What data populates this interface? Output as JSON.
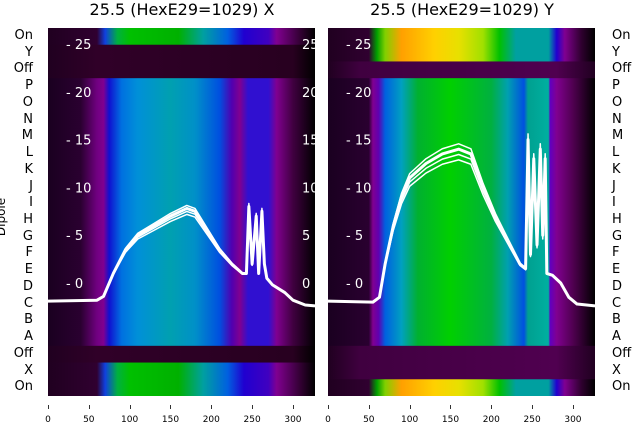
{
  "ylabel": "Dipole",
  "row_labels": [
    "On",
    "Y",
    "Off",
    "P",
    "O",
    "N",
    "M",
    "L",
    "K",
    "J",
    "I",
    "H",
    "G",
    "F",
    "E",
    "D",
    "C",
    "B",
    "A",
    "Off",
    "X",
    "On"
  ],
  "chart_data": [
    {
      "type": "heatmap",
      "title": "25.5 (HexE29=1029) X",
      "xlim": [
        0,
        327
      ],
      "ylim": [
        -8.9,
        29.5
      ],
      "xticks": [
        0,
        50,
        100,
        150,
        200,
        250,
        300
      ],
      "yticks": [
        0,
        5,
        10,
        15,
        20,
        25
      ],
      "row_kinds": [
        "bright",
        "dark",
        "dark",
        "main",
        "main",
        "main",
        "main",
        "main",
        "main",
        "main",
        "main",
        "main",
        "main",
        "main",
        "main",
        "main",
        "main",
        "main",
        "main",
        "dark",
        "bright",
        "bright"
      ],
      "profiles": {
        "main": [
          [
            0,
            "#1a0020"
          ],
          [
            40,
            "#2a0030"
          ],
          [
            60,
            "#700080"
          ],
          [
            68,
            "#800090"
          ],
          [
            75,
            "#1010d0"
          ],
          [
            90,
            "#0070e0"
          ],
          [
            110,
            "#0090d8"
          ],
          [
            150,
            "#00a0b0"
          ],
          [
            180,
            "#0090c8"
          ],
          [
            210,
            "#0050e0"
          ],
          [
            225,
            "#5000b0"
          ],
          [
            235,
            "#800090"
          ],
          [
            245,
            "#3010d0"
          ],
          [
            270,
            "#3010d0"
          ],
          [
            280,
            "#800090"
          ],
          [
            300,
            "#400040"
          ],
          [
            327,
            "#000000"
          ]
        ],
        "bright": [
          [
            0,
            "#200020"
          ],
          [
            60,
            "#300030"
          ],
          [
            70,
            "#1040e0"
          ],
          [
            85,
            "#00b040"
          ],
          [
            100,
            "#00c000"
          ],
          [
            160,
            "#00b000"
          ],
          [
            190,
            "#00a0a0"
          ],
          [
            220,
            "#0060e0"
          ],
          [
            240,
            "#2000d0"
          ],
          [
            270,
            "#4000c0"
          ],
          [
            280,
            "#800090"
          ],
          [
            310,
            "#300030"
          ],
          [
            327,
            "#000000"
          ]
        ],
        "dark": [
          [
            0,
            "#200020"
          ],
          [
            60,
            "#300028"
          ],
          [
            300,
            "#280020"
          ],
          [
            327,
            "#000000"
          ]
        ]
      },
      "line": [
        [
          0,
          -1.9
        ],
        [
          60,
          -1.8
        ],
        [
          68,
          -1.4
        ],
        [
          80,
          1
        ],
        [
          95,
          3.5
        ],
        [
          110,
          5
        ],
        [
          130,
          6
        ],
        [
          150,
          7
        ],
        [
          170,
          7.8
        ],
        [
          180,
          7.5
        ],
        [
          195,
          5.5
        ],
        [
          210,
          3.5
        ],
        [
          225,
          2
        ],
        [
          238,
          1
        ],
        [
          243,
          1
        ],
        [
          246,
          8
        ],
        [
          250,
          2
        ],
        [
          255,
          7
        ],
        [
          258,
          1
        ],
        [
          262,
          7.5
        ],
        [
          265,
          2
        ],
        [
          268,
          0.5
        ],
        [
          275,
          -0.2
        ],
        [
          290,
          -1
        ],
        [
          300,
          -1.8
        ],
        [
          315,
          -2.3
        ],
        [
          327,
          -2.4
        ]
      ]
    },
    {
      "type": "heatmap",
      "title": "25.5 (HexE29=1029) Y",
      "xlim": [
        0,
        327
      ],
      "ylim": [
        -8.9,
        29.5
      ],
      "xticks": [
        0,
        50,
        100,
        150,
        200,
        250,
        300
      ],
      "yticks": [
        0,
        5,
        10,
        15,
        20,
        25
      ],
      "row_kinds": [
        "bright",
        "bright",
        "dark",
        "main",
        "main",
        "main",
        "main",
        "main",
        "main",
        "main",
        "main",
        "main",
        "main",
        "main",
        "main",
        "main",
        "main",
        "main",
        "main",
        "dark",
        "dark",
        "bright"
      ],
      "profiles": {
        "main": [
          [
            0,
            "#1a0020"
          ],
          [
            50,
            "#2a0030"
          ],
          [
            55,
            "#800090"
          ],
          [
            62,
            "#6000b0"
          ],
          [
            70,
            "#0060e0"
          ],
          [
            90,
            "#00a0c0"
          ],
          [
            110,
            "#00b030"
          ],
          [
            150,
            "#00d000"
          ],
          [
            200,
            "#00b040"
          ],
          [
            220,
            "#00a0b0"
          ],
          [
            240,
            "#0050e0"
          ],
          [
            245,
            "#00a090"
          ],
          [
            270,
            "#00b0a0"
          ],
          [
            272,
            "#6000c0"
          ],
          [
            280,
            "#800090"
          ],
          [
            300,
            "#500050"
          ],
          [
            327,
            "#000000"
          ]
        ],
        "bright": [
          [
            0,
            "#200020"
          ],
          [
            50,
            "#300030"
          ],
          [
            60,
            "#00a000"
          ],
          [
            70,
            "#80d000"
          ],
          [
            90,
            "#ffa000"
          ],
          [
            130,
            "#ffd000"
          ],
          [
            160,
            "#e8e000"
          ],
          [
            190,
            "#a0e000"
          ],
          [
            210,
            "#00c000"
          ],
          [
            230,
            "#00a0a0"
          ],
          [
            270,
            "#00a0a0"
          ],
          [
            280,
            "#2000d0"
          ],
          [
            290,
            "#800090"
          ],
          [
            310,
            "#300030"
          ],
          [
            327,
            "#000000"
          ]
        ],
        "dark": [
          [
            0,
            "#200020"
          ],
          [
            40,
            "#400040"
          ],
          [
            280,
            "#500050"
          ],
          [
            327,
            "#200020"
          ]
        ]
      },
      "line": [
        [
          0,
          -1.9
        ],
        [
          55,
          -2
        ],
        [
          63,
          -1.5
        ],
        [
          70,
          2
        ],
        [
          80,
          6
        ],
        [
          90,
          9
        ],
        [
          100,
          11
        ],
        [
          120,
          12.5
        ],
        [
          140,
          13.5
        ],
        [
          160,
          14
        ],
        [
          175,
          13.5
        ],
        [
          190,
          10
        ],
        [
          205,
          7
        ],
        [
          220,
          4.5
        ],
        [
          235,
          2
        ],
        [
          242,
          1.5
        ],
        [
          245,
          15
        ],
        [
          248,
          3
        ],
        [
          252,
          13
        ],
        [
          256,
          4
        ],
        [
          260,
          14
        ],
        [
          263,
          5
        ],
        [
          266,
          13
        ],
        [
          268,
          1
        ],
        [
          275,
          0.8
        ],
        [
          285,
          0
        ],
        [
          295,
          -1.5
        ],
        [
          305,
          -2.2
        ],
        [
          327,
          -2.4
        ]
      ]
    }
  ]
}
